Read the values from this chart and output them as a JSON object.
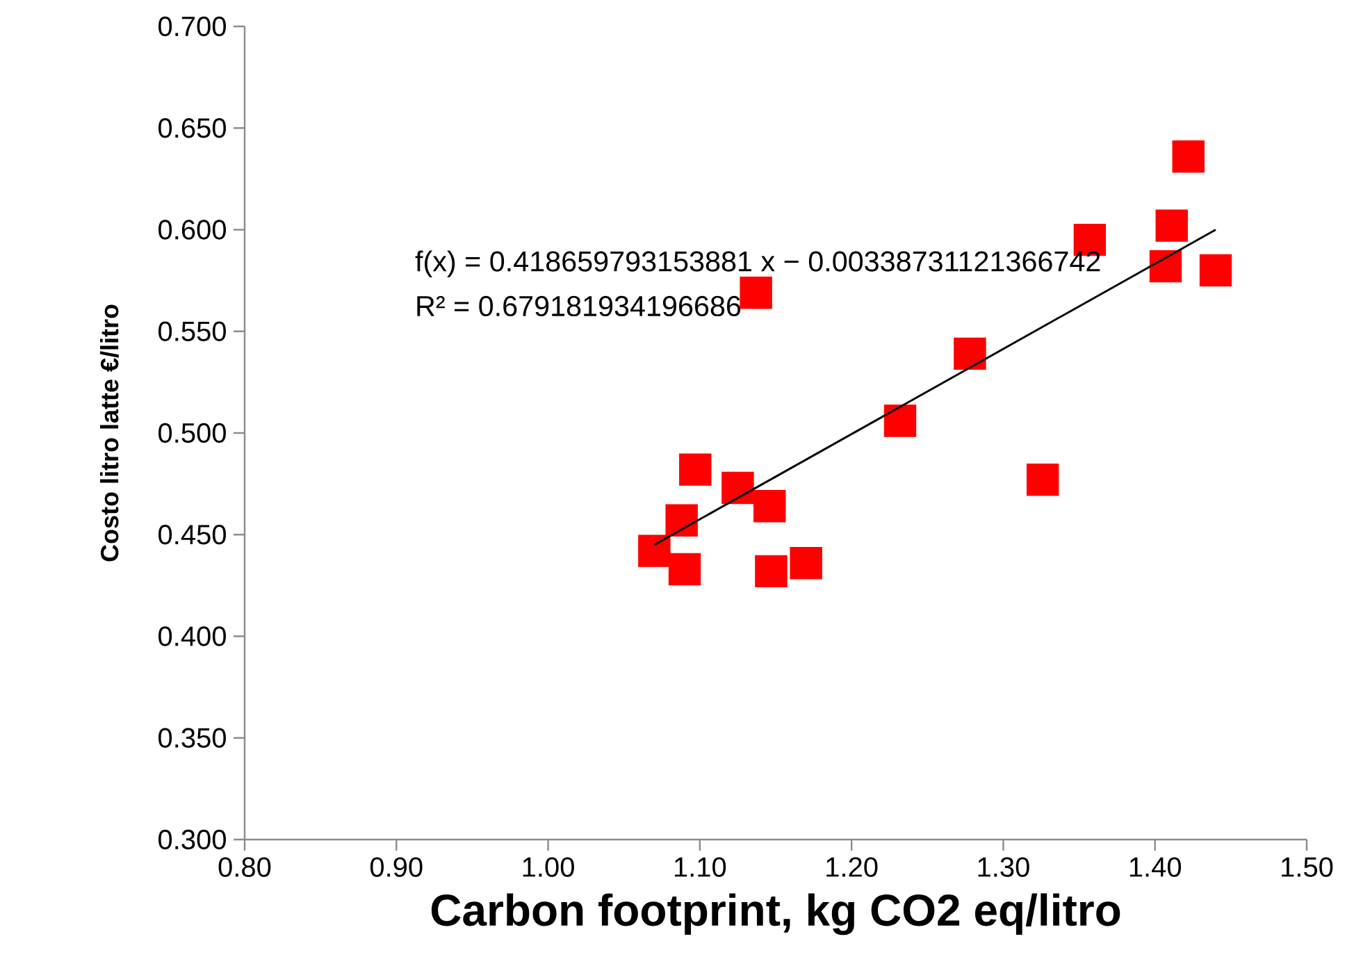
{
  "chart_data": {
    "type": "scatter",
    "xlabel": "Carbon footprint, kg CO2 eq/litro",
    "ylabel": "Costo litro latte €/litro",
    "annotations": [
      "f(x) = 0.418659793153881 x − 0.00338731121366742",
      "R² = 0.679181934196686"
    ],
    "xlim": [
      0.8,
      1.5
    ],
    "ylim": [
      0.3,
      0.7
    ],
    "xticks": [
      {
        "value": 0.8,
        "label": "0.80"
      },
      {
        "value": 0.9,
        "label": "0.90"
      },
      {
        "value": 1.0,
        "label": "1.00"
      },
      {
        "value": 1.1,
        "label": "1.10"
      },
      {
        "value": 1.2,
        "label": "1.20"
      },
      {
        "value": 1.3,
        "label": "1.30"
      },
      {
        "value": 1.4,
        "label": "1.40"
      },
      {
        "value": 1.5,
        "label": "1.50"
      }
    ],
    "yticks": [
      {
        "value": 0.3,
        "label": "0.300"
      },
      {
        "value": 0.35,
        "label": "0.350"
      },
      {
        "value": 0.4,
        "label": "0.400"
      },
      {
        "value": 0.45,
        "label": "0.450"
      },
      {
        "value": 0.5,
        "label": "0.500"
      },
      {
        "value": 0.55,
        "label": "0.550"
      },
      {
        "value": 0.6,
        "label": "0.600"
      },
      {
        "value": 0.65,
        "label": "0.650"
      },
      {
        "value": 0.7,
        "label": "0.700"
      }
    ],
    "grid": false,
    "series": [
      {
        "color": "#ff0000",
        "marker": "square",
        "x": [
          1.07,
          1.09,
          1.088,
          1.097,
          1.125,
          1.146,
          1.147,
          1.17,
          1.326,
          1.232,
          1.278,
          1.137,
          1.357,
          1.411,
          1.407,
          1.44,
          1.422
        ],
        "values": [
          0.442,
          0.433,
          0.457,
          0.482,
          0.473,
          0.464,
          0.432,
          0.436,
          0.477,
          0.506,
          0.539,
          0.569,
          0.595,
          0.602,
          0.582,
          0.58,
          0.636
        ]
      },
      {
        "type": "line",
        "color": "#000000",
        "marker": "none",
        "line_style": "solid",
        "x": [
          1.07,
          1.44
        ],
        "values": [
          0.445,
          0.6
        ]
      }
    ]
  }
}
